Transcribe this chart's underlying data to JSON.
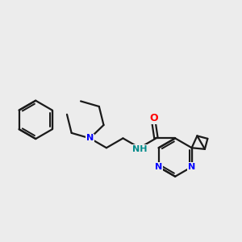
{
  "background_color": "#ececec",
  "bond_color": "#1a1a1a",
  "N_color": "#0000ff",
  "O_color": "#ff0000",
  "H_color": "#008b8b",
  "line_width": 1.6,
  "figsize": [
    3.0,
    3.0
  ],
  "dpi": 100,
  "xlim": [
    -4.5,
    5.0
  ],
  "ylim": [
    -2.8,
    2.8
  ]
}
